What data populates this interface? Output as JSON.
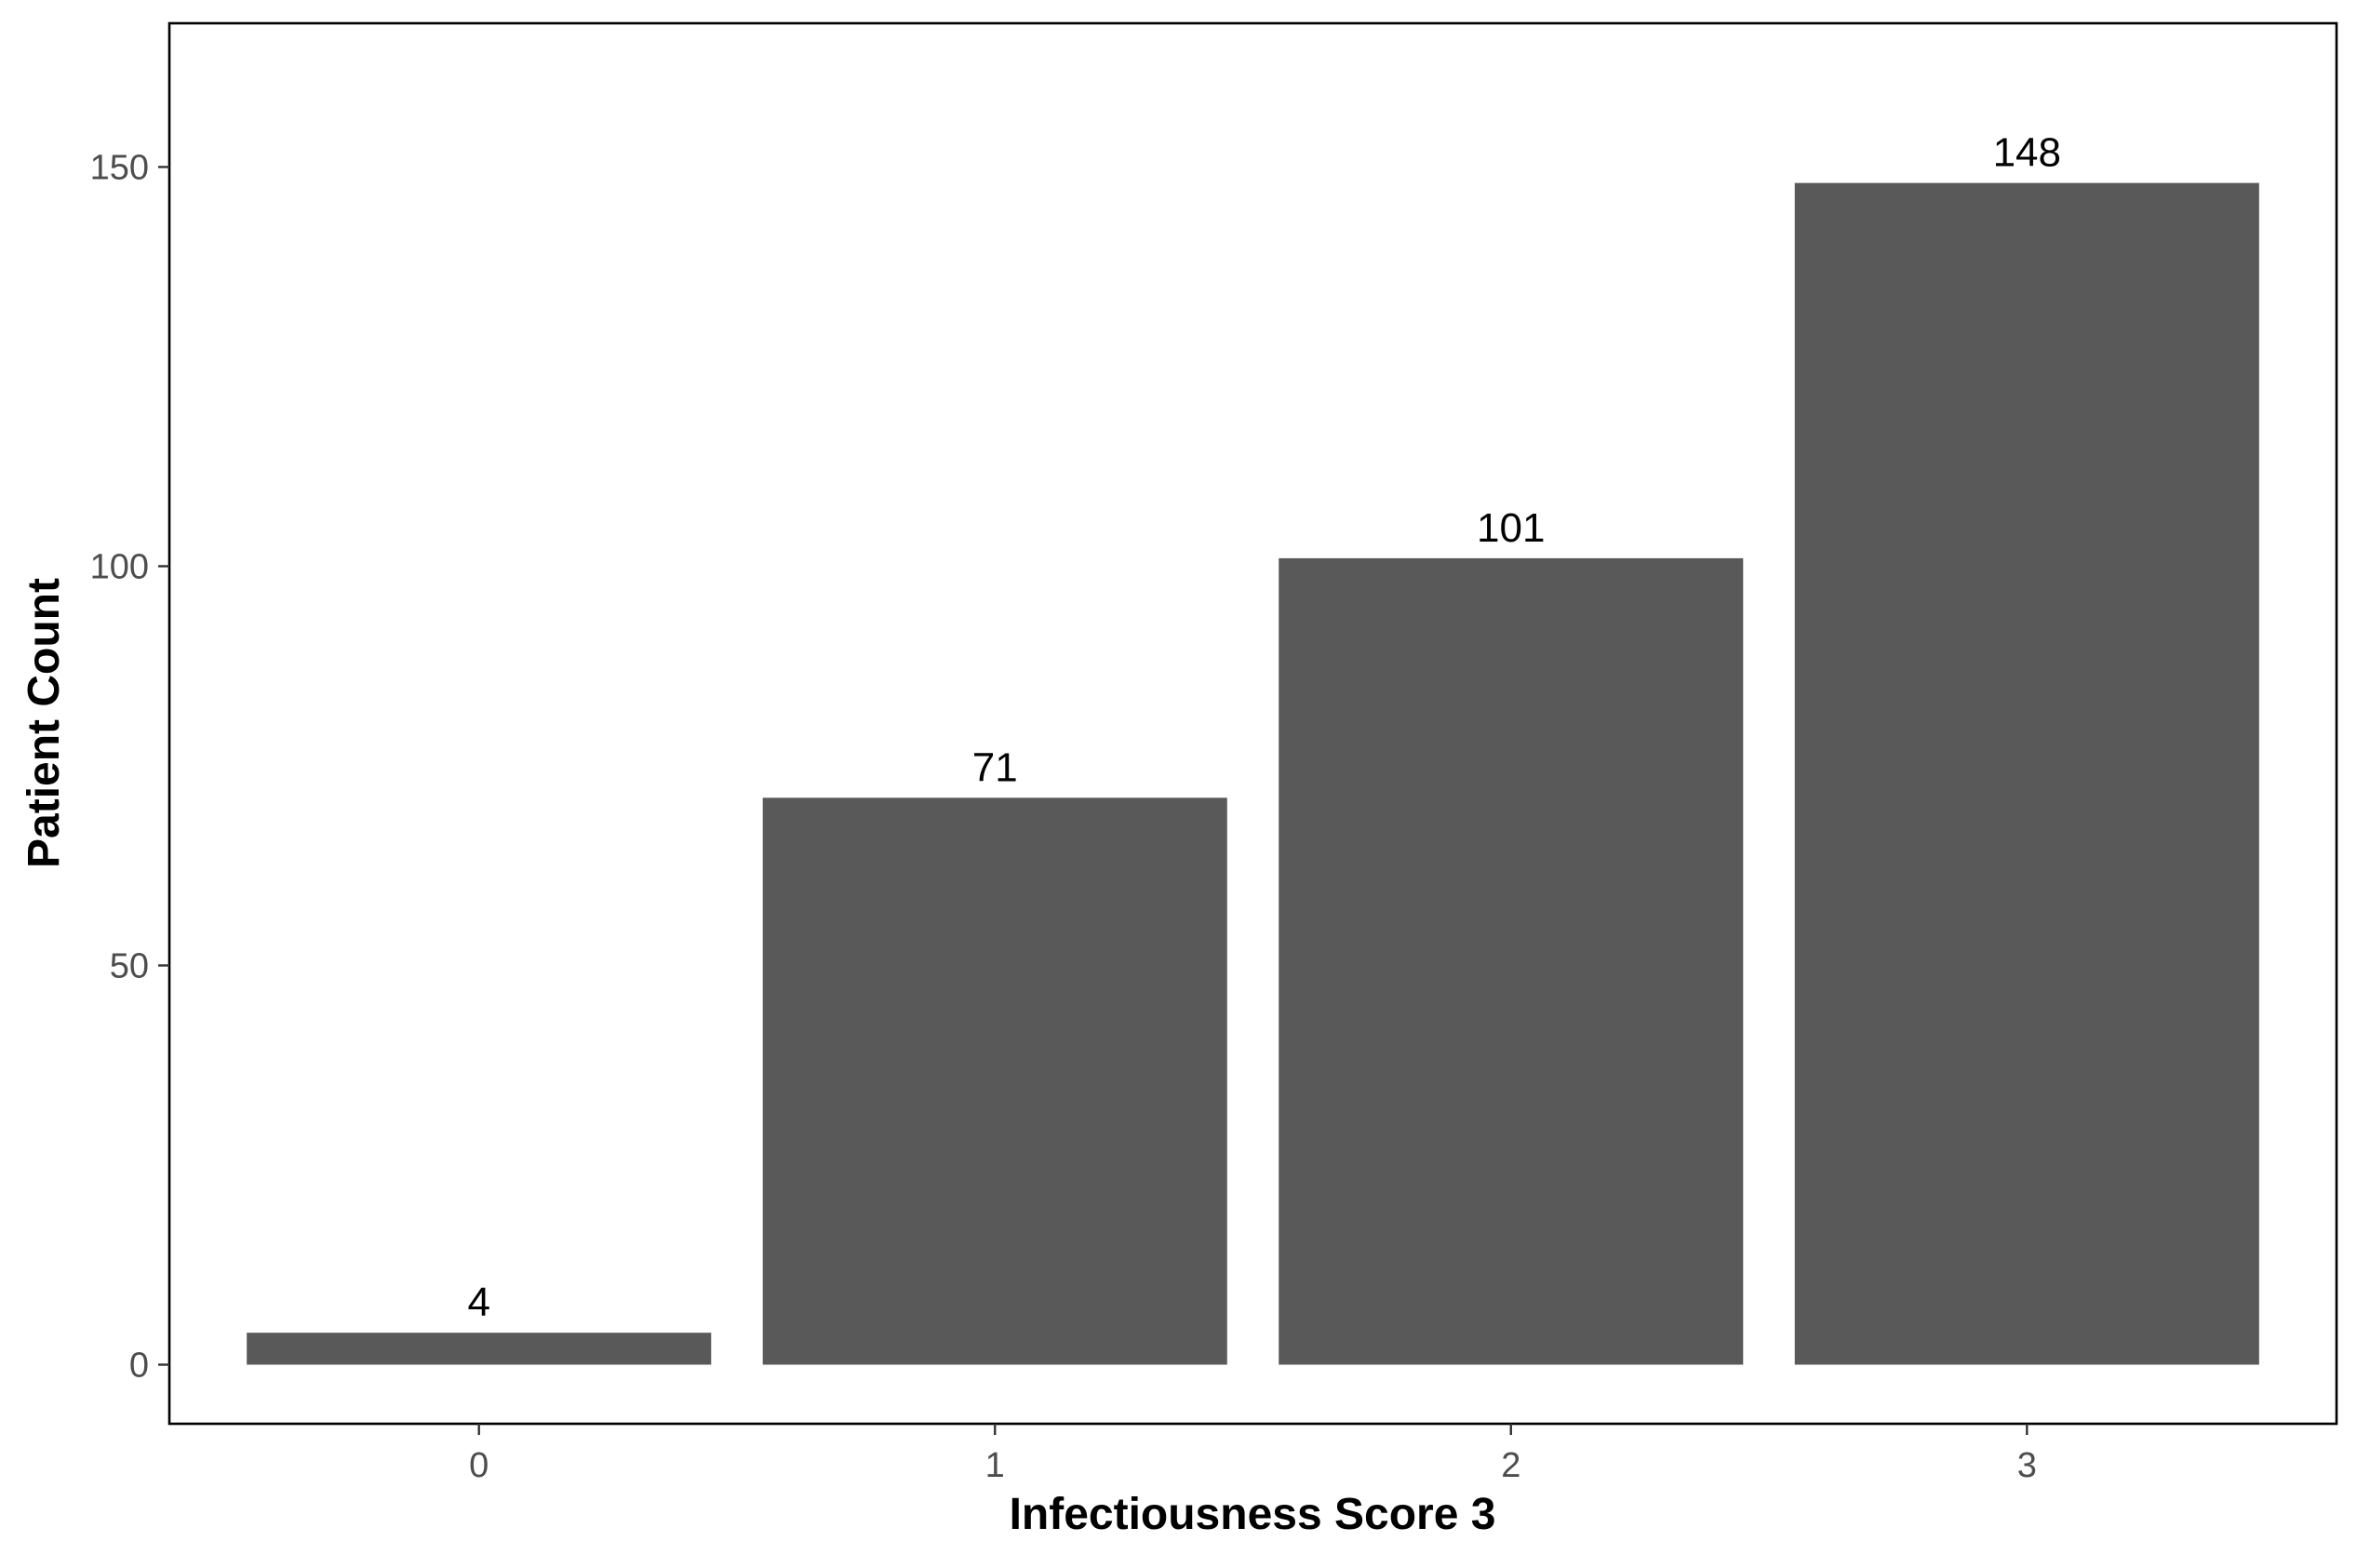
{
  "chart_data": {
    "type": "bar",
    "title": "",
    "xlabel": "Infectiousness Score 3",
    "ylabel": "Patient Count",
    "categories": [
      "0",
      "1",
      "2",
      "3"
    ],
    "values": [
      4,
      71,
      101,
      148
    ],
    "data_labels": [
      "4",
      "71",
      "101",
      "148"
    ],
    "yticks": [
      0,
      50,
      100,
      150
    ],
    "ytick_labels": [
      "0",
      "50",
      "100",
      "150"
    ],
    "ylim": [
      -7.4,
      168
    ],
    "grid": false,
    "legend": "none",
    "colors": {
      "bar": "#595959",
      "panel_border": "#000000",
      "tick_text": "#4d4d4d",
      "label_text": "#000000",
      "background": "#ffffff"
    }
  }
}
